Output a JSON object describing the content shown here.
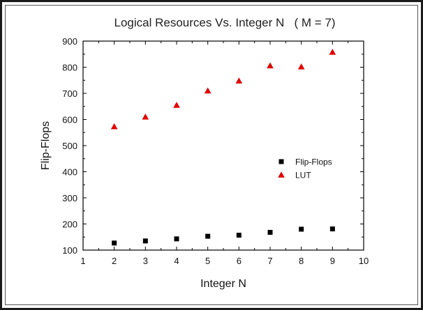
{
  "chart_data": {
    "type": "scatter",
    "title": "Logical Resources Vs. Integer N   ( M = 7)",
    "xlabel": "Integer N",
    "ylabel": "Flip-Flops",
    "xlim": [
      1,
      10
    ],
    "ylim": [
      100,
      900
    ],
    "xticks": [
      1,
      2,
      3,
      4,
      5,
      6,
      7,
      8,
      9,
      10
    ],
    "yticks": [
      100,
      200,
      300,
      400,
      500,
      600,
      700,
      800,
      900
    ],
    "x": [
      2,
      3,
      4,
      5,
      6,
      7,
      8,
      9
    ],
    "series": [
      {
        "name": "Flip-Flops",
        "marker": "square",
        "color": "#000000",
        "values": [
          127,
          135,
          143,
          153,
          157,
          168,
          180,
          181
        ]
      },
      {
        "name": "LUT",
        "marker": "triangle",
        "color": "#e00000",
        "values": [
          573,
          610,
          655,
          710,
          748,
          806,
          802,
          858
        ]
      }
    ],
    "legend_position": "right-middle",
    "grid": false
  }
}
